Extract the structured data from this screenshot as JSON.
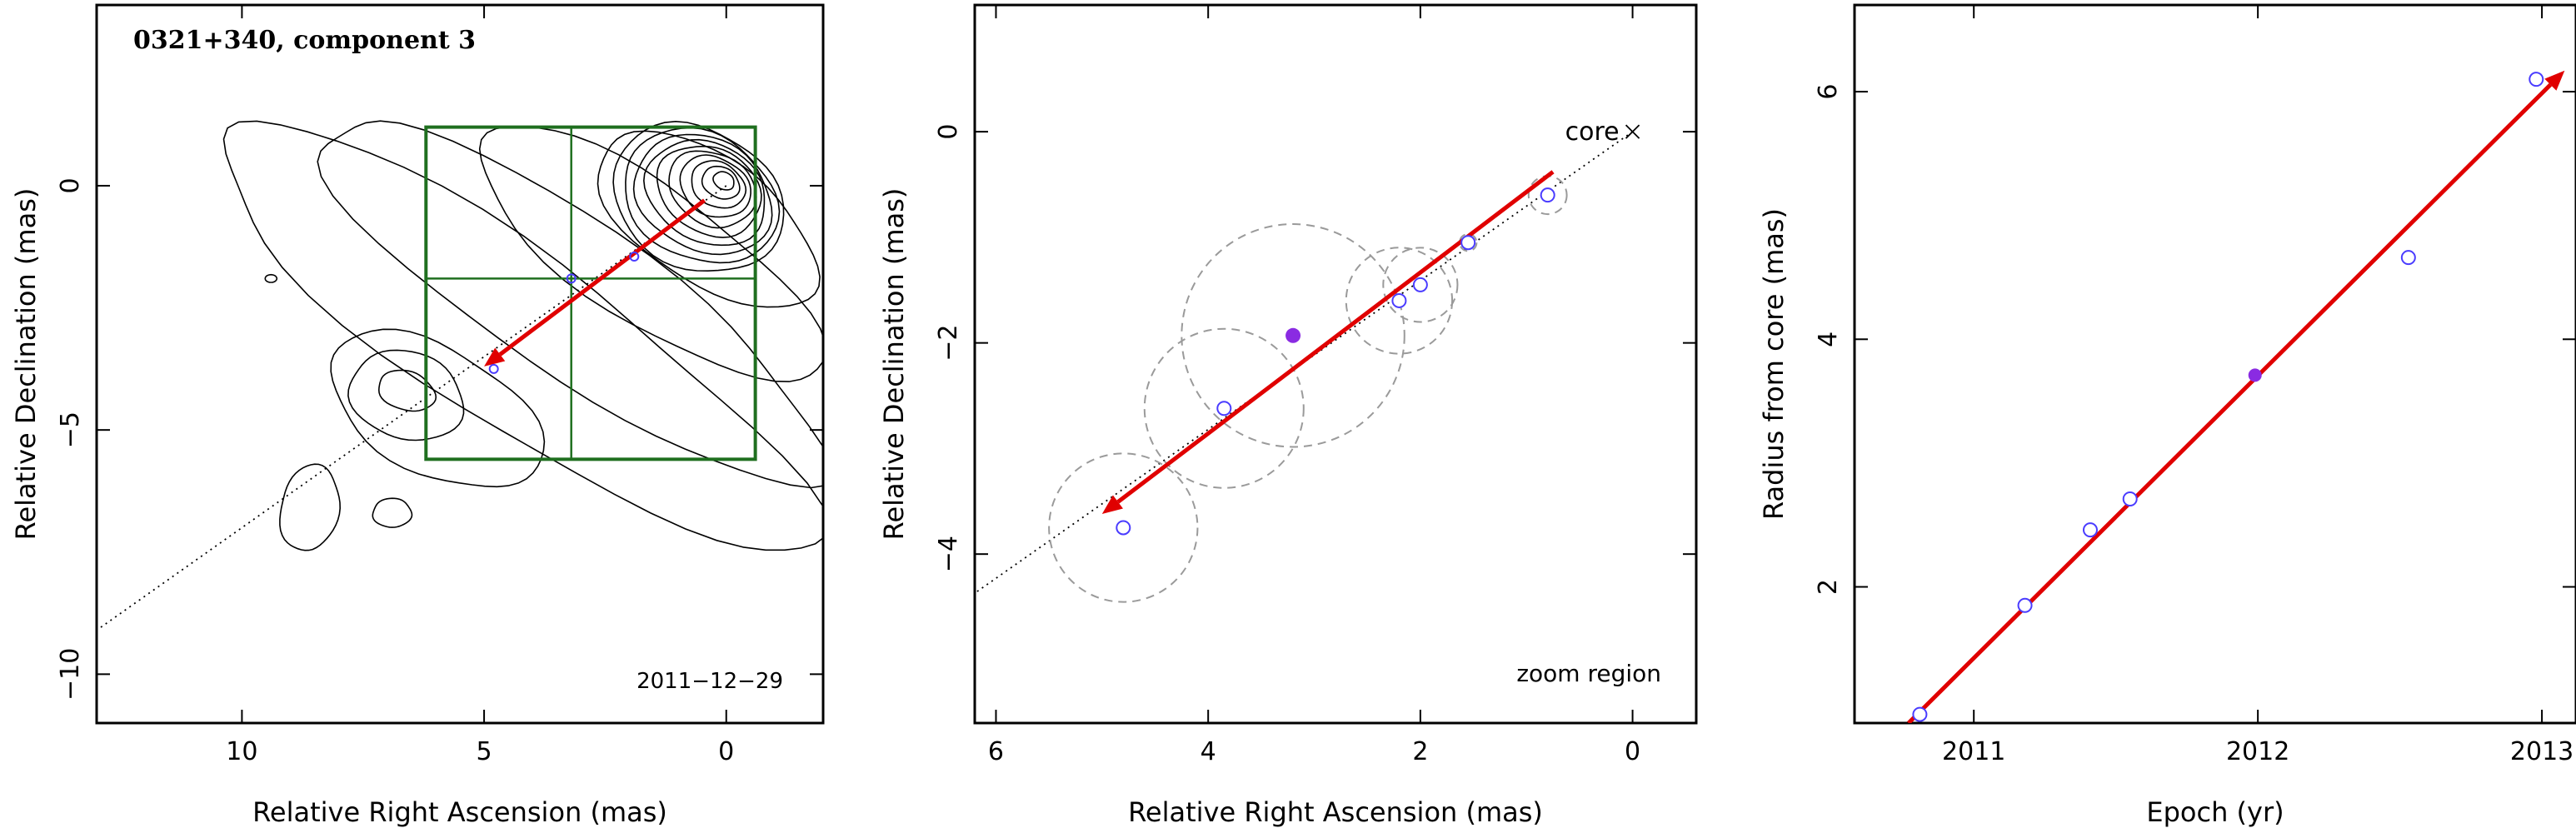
{
  "chart_data": [
    {
      "type": "scatter",
      "title": "0321+340, component 3",
      "xlabel": "Relative Right Ascension (mas)",
      "ylabel": "Relative Declination (mas)",
      "xlim": [
        13.0,
        -2.0
      ],
      "ylim": [
        -11.0,
        3.7
      ],
      "x_ticks": [
        10,
        5,
        0
      ],
      "y_ticks": [
        0,
        -5,
        -10
      ],
      "x_tick_labels": [
        "10",
        "5",
        "0"
      ],
      "y_tick_labels": [
        "0",
        "−5",
        "−10"
      ],
      "annotation": "2011−12−29",
      "contour_peak": [
        0.0,
        0.0
      ],
      "component_points": [
        [
          3.2,
          -1.9
        ],
        [
          4.8,
          -3.75
        ],
        [
          1.9,
          -1.45
        ]
      ],
      "zoom_box": {
        "x": [
          6.2,
          -0.6
        ],
        "y": [
          1.2,
          -5.6
        ],
        "cross_at": [
          3.2,
          -1.9
        ]
      },
      "arrow": {
        "from": [
          0.45,
          -0.3
        ],
        "to": [
          5.0,
          -3.7
        ]
      },
      "jet_line": {
        "from": [
          0.0,
          0.0
        ],
        "to": [
          13.0,
          -9.1
        ]
      },
      "colors": {
        "contour": "#000000",
        "zoom_box": "#1f6f1f",
        "arrow": "#e00000",
        "point": "#4a3cff",
        "dotted": "#000000"
      }
    },
    {
      "type": "scatter",
      "xlabel": "Relative Right Ascension (mas)",
      "ylabel": "Relative Declination (mas)",
      "xlim": [
        6.2,
        -0.6
      ],
      "ylim": [
        -5.6,
        1.2
      ],
      "x_ticks": [
        6,
        4,
        2,
        0
      ],
      "y_ticks": [
        0,
        -2,
        -4
      ],
      "x_tick_labels": [
        "6",
        "4",
        "2",
        "0"
      ],
      "y_tick_labels": [
        "0",
        "−2",
        "−4"
      ],
      "core_label": "core",
      "core_position": [
        0.0,
        0.0
      ],
      "region_label": "zoom region",
      "open_points": [
        [
          4.8,
          -3.75
        ],
        [
          3.85,
          -2.62
        ],
        [
          2.2,
          -1.6
        ],
        [
          2.0,
          -1.45
        ],
        [
          1.55,
          -1.05
        ],
        [
          0.8,
          -0.6
        ]
      ],
      "filled_point": [
        3.2,
        -1.93
      ],
      "error_circles": [
        {
          "x": 4.8,
          "y": -3.75,
          "r": 0.7
        },
        {
          "x": 3.85,
          "y": -2.62,
          "r": 0.75
        },
        {
          "x": 3.2,
          "y": -1.93,
          "r": 1.05
        },
        {
          "x": 2.2,
          "y": -1.6,
          "r": 0.5
        },
        {
          "x": 2.0,
          "y": -1.45,
          "r": 0.35
        },
        {
          "x": 1.55,
          "y": -1.05,
          "r": 0.08
        },
        {
          "x": 0.8,
          "y": -0.6,
          "r": 0.18
        }
      ],
      "arrow": {
        "from": [
          0.75,
          -0.38
        ],
        "to": [
          5.0,
          -3.62
        ]
      },
      "jet_line": {
        "from": [
          0.0,
          0.0
        ],
        "to": [
          6.2,
          -4.37
        ]
      },
      "colors": {
        "arrow": "#e00000",
        "point": "#4a3cff",
        "filled": "#8a2be2",
        "circle": "#9a9a9a"
      }
    },
    {
      "type": "line",
      "xlabel": "Epoch (yr)",
      "ylabel": "Radius from core (mas)",
      "xlim": [
        2010.58,
        2013.12
      ],
      "ylim": [
        0.9,
        6.7
      ],
      "x_ticks": [
        2011,
        2012,
        2013
      ],
      "y_ticks": [
        2,
        4,
        6
      ],
      "x_tick_labels": [
        "2011",
        "2012",
        "2013"
      ],
      "y_tick_labels": [
        "2",
        "4",
        "6"
      ],
      "points": [
        {
          "x": 2010.81,
          "y": 0.97
        },
        {
          "x": 2011.18,
          "y": 1.85
        },
        {
          "x": 2011.41,
          "y": 2.46
        },
        {
          "x": 2011.55,
          "y": 2.71
        },
        {
          "x": 2011.99,
          "y": 3.71
        },
        {
          "x": 2012.53,
          "y": 4.66
        },
        {
          "x": 2012.98,
          "y": 6.1
        }
      ],
      "filled_index": 4,
      "fit": {
        "x": [
          2010.77,
          2013.08
        ],
        "y": [
          0.9,
          6.17
        ]
      },
      "colors": {
        "arrow": "#e00000",
        "point": "#4a3cff",
        "filled": "#8a2be2"
      }
    }
  ]
}
